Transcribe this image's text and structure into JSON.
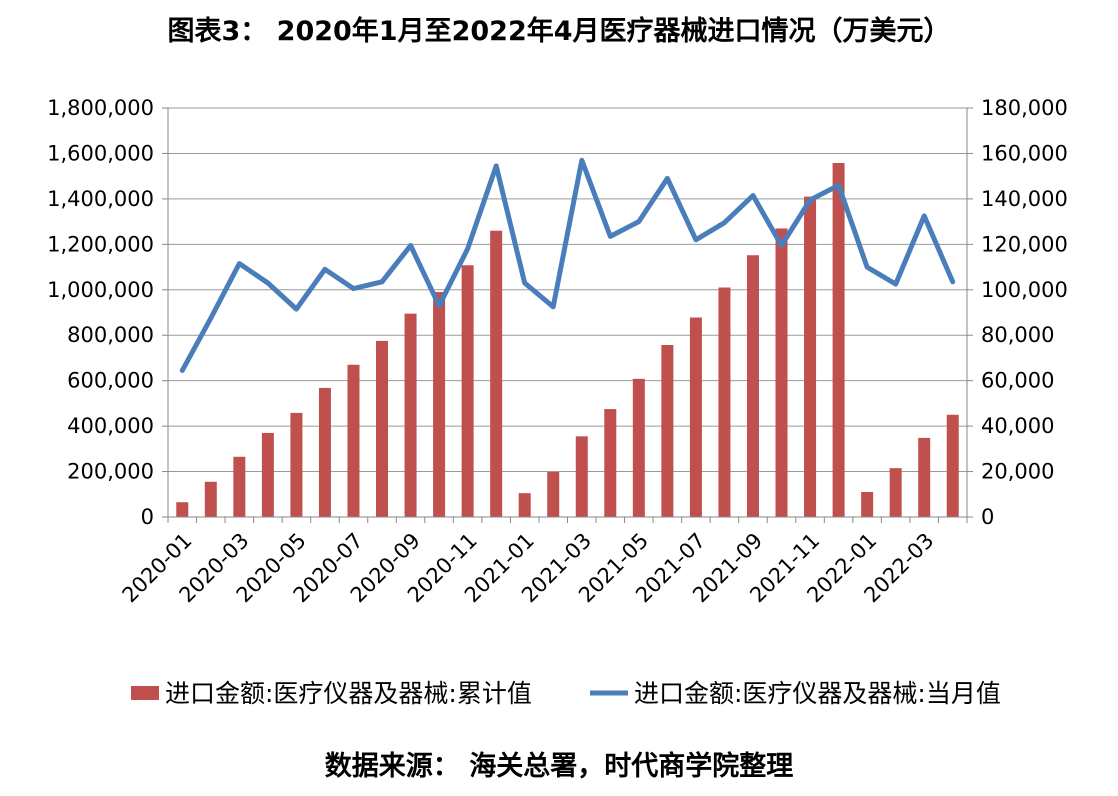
{
  "chart_data": {
    "type": "bar",
    "title": "图表3： 2020年1月至2022年4月医疗器械进口情况（万美元）",
    "source": "数据来源： 海关总署，时代商学院整理",
    "categories": [
      "2020-01",
      "2020-02",
      "2020-03",
      "2020-04",
      "2020-05",
      "2020-06",
      "2020-07",
      "2020-08",
      "2020-09",
      "2020-10",
      "2020-11",
      "2020-12",
      "2021-01",
      "2021-02",
      "2021-03",
      "2021-04",
      "2021-05",
      "2021-06",
      "2021-07",
      "2021-08",
      "2021-09",
      "2021-10",
      "2021-11",
      "2021-12",
      "2022-01",
      "2022-02",
      "2022-03",
      "2022-04"
    ],
    "x_tick_labels": [
      "2020-01",
      "2020-03",
      "2020-05",
      "2020-07",
      "2020-09",
      "2020-11",
      "2021-01",
      "2021-03",
      "2021-05",
      "2021-07",
      "2021-09",
      "2021-11",
      "2022-01",
      "2022-03"
    ],
    "y_left": {
      "min": 0,
      "max": 1800000,
      "step": 200000,
      "tick_labels": [
        "0",
        "200,000",
        "400,000",
        "600,000",
        "800,000",
        "1,000,000",
        "1,200,000",
        "1,400,000",
        "1,600,000",
        "1,800,000"
      ]
    },
    "y_right": {
      "min": 0,
      "max": 180000,
      "step": 20000,
      "tick_labels": [
        "0",
        "20,000",
        "40,000",
        "60,000",
        "80,000",
        "100,000",
        "120,000",
        "140,000",
        "160,000",
        "180,000"
      ]
    },
    "grid": true,
    "legend_position": "bottom",
    "series": [
      {
        "name": "进口金额:医疗仪器及器械:累计值",
        "type": "bar",
        "axis": "left",
        "color": "#C0504D",
        "values": [
          65000,
          155000,
          265000,
          370000,
          458000,
          568000,
          670000,
          775000,
          895000,
          990000,
          1108000,
          1260000,
          105000,
          198000,
          355000,
          475000,
          608000,
          757000,
          878000,
          1010000,
          1152000,
          1270000,
          1410000,
          1558000,
          110000,
          215000,
          348000,
          450000
        ]
      },
      {
        "name": "进口金额:医疗仪器及器械:当月值",
        "type": "line",
        "axis": "right",
        "color": "#4A7EBB",
        "values": [
          64500,
          87500,
          111500,
          103000,
          91500,
          109000,
          100500,
          103500,
          119500,
          93000,
          118000,
          154500,
          103000,
          92500,
          157000,
          123500,
          130000,
          149000,
          122000,
          129500,
          141500,
          119500,
          139500,
          146000,
          110000,
          102500,
          132500,
          103500
        ]
      }
    ]
  }
}
